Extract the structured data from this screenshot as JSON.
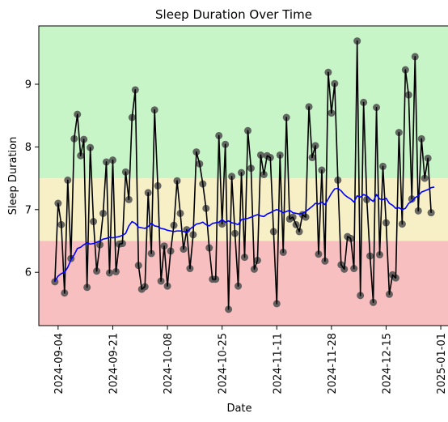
{
  "chart_data": {
    "type": "line",
    "title": "Sleep Duration Over Time",
    "xlabel": "Date",
    "ylabel": "Sleep Duration",
    "x_ticks": [
      "2024-09-04",
      "2024-09-21",
      "2024-10-08",
      "2024-10-25",
      "2024-11-11",
      "2024-11-28",
      "2024-12-15",
      "2025-01-01"
    ],
    "y_ticks": [
      "6",
      "7",
      "8",
      "9"
    ],
    "xlim": [
      "2024-08-29",
      "2025-01-04"
    ],
    "ylim": [
      5.15,
      9.93
    ],
    "bands": [
      {
        "from": 7.5,
        "to": 9.93,
        "color": "#c8f5c8"
      },
      {
        "from": 6.5,
        "to": 7.5,
        "color": "#f7f0c6"
      },
      {
        "from": 5.15,
        "to": 6.5,
        "color": "#f7bfbf"
      }
    ],
    "grid": false,
    "legend": "none",
    "series": [
      {
        "style": "line+markers",
        "line_color": "#000000",
        "marker_color": "#4d4d4d",
        "start_date": "2024-09-03",
        "values": [
          5.85,
          7.1,
          6.76,
          5.67,
          7.47,
          6.22,
          8.13,
          8.52,
          7.86,
          8.12,
          5.76,
          7.99,
          6.81,
          6.02,
          6.44,
          6.94,
          7.76,
          5.99,
          7.79,
          6.01,
          6.45,
          6.46,
          7.6,
          7.16,
          8.47,
          8.91,
          6.11,
          5.73,
          5.77,
          7.27,
          6.3,
          8.59,
          7.38,
          5.86,
          6.42,
          5.78,
          6.34,
          6.75,
          7.46,
          6.94,
          6.37,
          6.68,
          6.06,
          6.6,
          7.92,
          7.73,
          7.41,
          7.02,
          6.39,
          5.89,
          5.89,
          8.18,
          6.77,
          8.04,
          5.41,
          7.53,
          6.62,
          5.78,
          7.59,
          6.24,
          8.26,
          7.66,
          6.05,
          6.19,
          7.87,
          7.56,
          7.86,
          7.83,
          6.65,
          5.5,
          7.87,
          6.32,
          8.47,
          6.85,
          6.88,
          6.76,
          6.65,
          6.92,
          6.88,
          8.64,
          7.83,
          8.02,
          6.29,
          7.63,
          6.18,
          9.19,
          8.54,
          9.01,
          7.47,
          6.12,
          6.05,
          6.57,
          6.54,
          6.06,
          9.69,
          5.63,
          8.71,
          7.16,
          6.26,
          5.52,
          8.63,
          6.28,
          7.69,
          6.79,
          5.65,
          5.96,
          5.91,
          8.23,
          6.77,
          9.23,
          8.83,
          7.17,
          9.44,
          6.98,
          8.13,
          7.5,
          7.82,
          6.95
        ]
      },
      {
        "style": "line",
        "line_color": "#0000ff",
        "start_date": "2024-09-03",
        "values": [
          5.86,
          5.94,
          5.98,
          6.0,
          6.08,
          6.2,
          6.28,
          6.38,
          6.4,
          6.44,
          6.47,
          6.45,
          6.46,
          6.48,
          6.5,
          6.53,
          6.54,
          6.56,
          6.55,
          6.56,
          6.57,
          6.59,
          6.62,
          6.74,
          6.81,
          6.78,
          6.72,
          6.71,
          6.7,
          6.73,
          6.78,
          6.74,
          6.73,
          6.7,
          6.69,
          6.67,
          6.66,
          6.65,
          6.66,
          6.66,
          6.65,
          6.64,
          6.69,
          6.73,
          6.77,
          6.78,
          6.8,
          6.76,
          6.74,
          6.78,
          6.79,
          6.8,
          6.84,
          6.8,
          6.82,
          6.79,
          6.78,
          6.76,
          6.84,
          6.85,
          6.86,
          6.88,
          6.9,
          6.92,
          6.9,
          6.89,
          6.93,
          6.95,
          6.98,
          7.0,
          6.98,
          6.95,
          6.97,
          6.99,
          6.95,
          6.94,
          6.93,
          6.94,
          6.97,
          7.01,
          7.05,
          7.1,
          7.09,
          7.12,
          7.08,
          7.17,
          7.26,
          7.33,
          7.34,
          7.3,
          7.24,
          7.2,
          7.17,
          7.12,
          7.22,
          7.2,
          7.24,
          7.22,
          7.17,
          7.13,
          7.24,
          7.17,
          7.16,
          7.18,
          7.1,
          7.07,
          7.02,
          7.03,
          7.0,
          7.02,
          7.1,
          7.13,
          7.19,
          7.22,
          7.28,
          7.3,
          7.32,
          7.35,
          7.36
        ]
      }
    ]
  }
}
